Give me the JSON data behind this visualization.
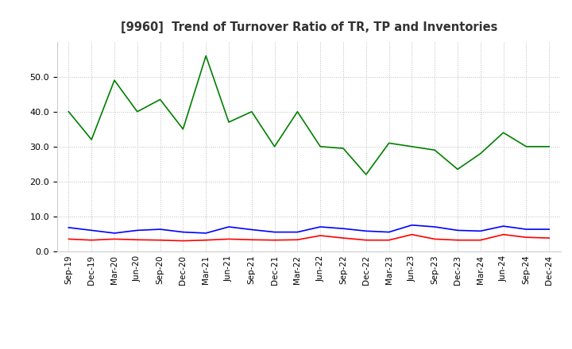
{
  "title": "[9960]  Trend of Turnover Ratio of TR, TP and Inventories",
  "x_labels": [
    "Sep-19",
    "Dec-19",
    "Mar-20",
    "Jun-20",
    "Sep-20",
    "Dec-20",
    "Mar-21",
    "Jun-21",
    "Sep-21",
    "Dec-21",
    "Mar-22",
    "Jun-22",
    "Sep-22",
    "Dec-22",
    "Mar-23",
    "Jun-23",
    "Sep-23",
    "Dec-23",
    "Mar-24",
    "Jun-24",
    "Sep-24",
    "Dec-24"
  ],
  "trade_receivables": [
    3.5,
    3.2,
    3.5,
    3.3,
    3.2,
    3.0,
    3.2,
    3.5,
    3.3,
    3.2,
    3.3,
    4.5,
    3.8,
    3.2,
    3.2,
    4.8,
    3.5,
    3.2,
    3.2,
    4.8,
    4.0,
    3.8
  ],
  "trade_payables": [
    6.8,
    6.0,
    5.2,
    6.0,
    6.3,
    5.5,
    5.2,
    7.0,
    6.2,
    5.5,
    5.5,
    7.0,
    6.5,
    5.8,
    5.5,
    7.5,
    7.0,
    6.0,
    5.8,
    7.2,
    6.3,
    6.3
  ],
  "inventories": [
    40.0,
    32.0,
    49.0,
    40.0,
    43.5,
    35.0,
    56.0,
    37.0,
    40.0,
    30.0,
    40.0,
    30.0,
    29.5,
    22.0,
    31.0,
    30.0,
    29.0,
    23.5,
    28.0,
    34.0,
    30.0,
    30.0
  ],
  "tr_color": "#ff0000",
  "tp_color": "#0000ff",
  "inv_color": "#008000",
  "ylim": [
    0.0,
    60.0
  ],
  "yticks": [
    0.0,
    10.0,
    20.0,
    30.0,
    40.0,
    50.0
  ],
  "background_color": "#ffffff",
  "grid_color": "#bbbbbb"
}
